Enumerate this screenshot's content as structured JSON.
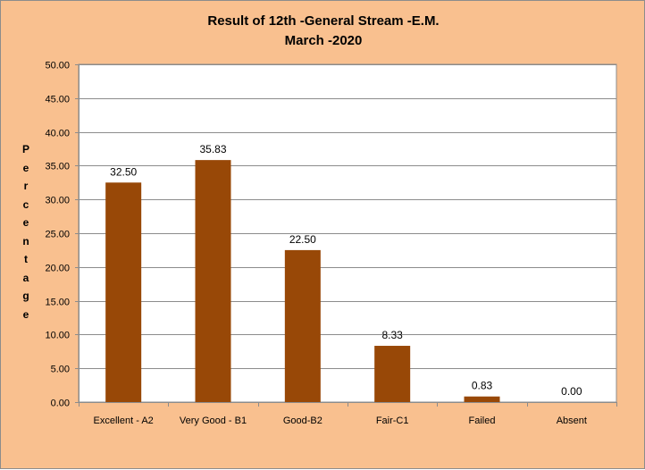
{
  "chart_data": {
    "type": "bar",
    "title_lines": [
      "Result of 12th -General Stream -E.M.",
      "March -2020"
    ],
    "ylabel": "Percentage",
    "xlabel": "",
    "categories": [
      "Excellent - A2",
      "Very Good - B1",
      "Good-B2",
      "Fair-C1",
      "Failed",
      "Absent"
    ],
    "values": [
      32.5,
      35.83,
      22.5,
      8.33,
      0.83,
      0.0
    ],
    "data_labels": [
      "32.50",
      "35.83",
      "22.50",
      "8.33",
      "0.83",
      "0.00"
    ],
    "yticks": [
      "0.00",
      "5.00",
      "10.00",
      "15.00",
      "20.00",
      "25.00",
      "30.00",
      "35.00",
      "40.00",
      "45.00",
      "50.00"
    ],
    "ylim": [
      0,
      50
    ],
    "grid": true,
    "legend": "none",
    "colors": {
      "background": "#f9c08f",
      "plot_area": "#ffffff",
      "bar": "#984807",
      "grid": "#8c8c8c"
    }
  }
}
